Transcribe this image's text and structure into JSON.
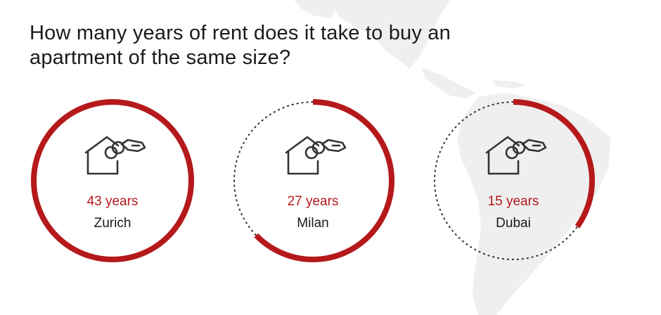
{
  "title": "How many years of rent does it take to buy an apartment of the same size?",
  "colors": {
    "accent": "#b5191b",
    "dashed": "#333333",
    "map": "#efefef",
    "text": "#1a1a1a"
  },
  "max_years": 43,
  "cities": [
    {
      "years_label": "43 years",
      "years": 43,
      "city": "Zurich",
      "icon": "house-keys-icon"
    },
    {
      "years_label": "27 years",
      "years": 27,
      "city": "Milan",
      "icon": "house-keys-icon"
    },
    {
      "years_label": "15 years",
      "years": 15,
      "city": "Dubai",
      "icon": "house-keys-icon"
    }
  ]
}
